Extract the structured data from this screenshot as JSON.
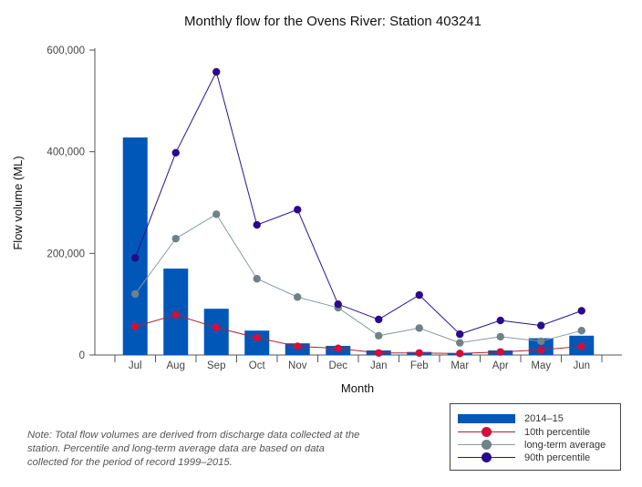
{
  "colors": {
    "bar": "#0057b8",
    "p10": "#d0103a",
    "avg": "#6e8288",
    "p90": "#2a0a8c",
    "axis": "#555555",
    "line10": "#b2222e",
    "lineAvg": "#8a9aa0",
    "line90": "#2a1090"
  },
  "note": "Note: Total flow volumes are derived from discharge data collected at the station. Percentile and long-term average data are based on data collected for the period of record 1999–2015.",
  "chart_data": {
    "type": "bar",
    "title": "Monthly flow for the Ovens River: Station 403241",
    "xlabel": "Month",
    "ylabel": "Flow volume (ML)",
    "ylim": [
      0,
      600000
    ],
    "yticks": [
      0,
      200000,
      400000,
      600000
    ],
    "ytick_labels": [
      "0",
      "200,000",
      "400,000",
      "600,000"
    ],
    "categories": [
      "Jul",
      "Aug",
      "Sep",
      "Oct",
      "Nov",
      "Dec",
      "Jan",
      "Feb",
      "Mar",
      "Apr",
      "May",
      "Jun"
    ],
    "series": [
      {
        "name": "2014–15",
        "kind": "bar",
        "color": "#0057b8",
        "values": [
          428000,
          170000,
          91000,
          48000,
          23000,
          18000,
          9000,
          6000,
          4000,
          9000,
          33000,
          38000
        ]
      },
      {
        "name": "10th percentile",
        "kind": "line",
        "color": "#d0103a",
        "values": [
          56000,
          79000,
          54000,
          34000,
          17000,
          13000,
          4000,
          4000,
          3000,
          6000,
          10000,
          17000
        ]
      },
      {
        "name": "long-term average",
        "kind": "line",
        "color": "#6e8288",
        "values": [
          120000,
          229000,
          277000,
          150000,
          114000,
          93000,
          38000,
          53000,
          24000,
          36000,
          27000,
          48000
        ]
      },
      {
        "name": "90th percentile",
        "kind": "line",
        "color": "#2a0a8c",
        "values": [
          191000,
          398000,
          557000,
          256000,
          286000,
          100000,
          70000,
          118000,
          41000,
          68000,
          58000,
          87000
        ]
      }
    ]
  }
}
